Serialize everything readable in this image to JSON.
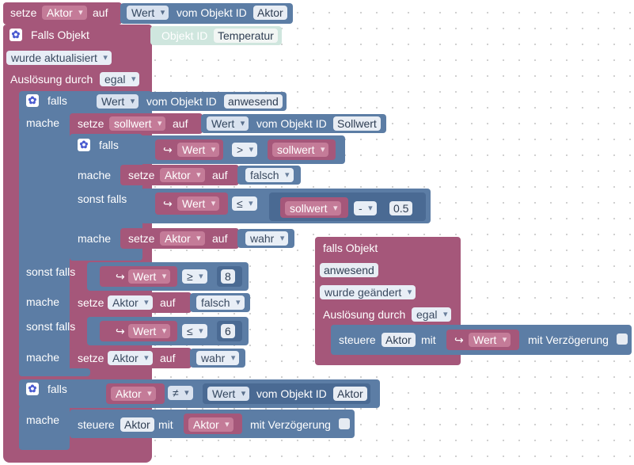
{
  "top_set": {
    "setze": "setze",
    "var": "Aktor",
    "auf": "auf",
    "wert": "Wert",
    "vom_objekt_id": "vom Objekt ID",
    "id": "Aktor"
  },
  "trigger1": {
    "falls_objekt": "Falls Objekt",
    "objekt_id": "Objekt ID",
    "id": "Temperatur",
    "wurde": "wurde aktualisiert",
    "ausloesung": "Auslösung durch",
    "egal": "egal"
  },
  "if_outer": {
    "falls": "falls",
    "wert": "Wert",
    "vom_objekt_id": "vom Objekt ID",
    "id": "anwesend",
    "mache": "mache",
    "setze_sollwert": {
      "setze": "setze",
      "var": "sollwert",
      "auf": "auf",
      "wert": "Wert",
      "vom": "vom Objekt ID",
      "id": "Sollwert"
    },
    "inner": {
      "falls": "falls",
      "wert": "Wert",
      "op1": ">",
      "sollwert": "sollwert",
      "mache1": "mache",
      "setze": "setze",
      "aktor": "Aktor",
      "auf": "auf",
      "falsch": "falsch",
      "sonst_falls": "sonst falls",
      "wert2": "Wert",
      "op2": "≤",
      "sollwert2": "sollwert",
      "minus": "-",
      "num": "0.5",
      "mache2": "mache",
      "wahr": "wahr"
    }
  },
  "elseif_blocks": [
    {
      "sonst_falls": "sonst falls",
      "wert": "Wert",
      "op": "≥",
      "num": "8",
      "mache": "mache",
      "setze": "setze",
      "aktor": "Aktor",
      "auf": "auf",
      "val": "falsch"
    },
    {
      "sonst_falls": "sonst falls",
      "wert": "Wert",
      "op": "≤",
      "num": "6",
      "mache": "mache",
      "setze": "setze",
      "aktor": "Aktor",
      "auf": "auf",
      "val": "wahr"
    }
  ],
  "if_bottom": {
    "falls": "falls",
    "aktor": "Aktor",
    "op": "≠",
    "wert": "Wert",
    "vom": "vom Objekt ID",
    "id": "Aktor",
    "mache": "mache",
    "steuere": "steuere",
    "aktor2": "Aktor",
    "mit": "mit",
    "aktor3": "Aktor",
    "verz": "mit Verzögerung"
  },
  "trigger2": {
    "falls_objekt": "falls Objekt",
    "id": "anwesend",
    "wurde": "wurde geändert",
    "ausloesung": "Auslösung durch",
    "egal": "egal",
    "steuere": "steuere",
    "aktor": "Aktor",
    "mit": "mit",
    "wert": "Wert",
    "verz": "mit Verzögerung"
  },
  "colors": {
    "pink": "#a5577a",
    "blue": "#5c7da5",
    "mint": "#cfe6de"
  }
}
